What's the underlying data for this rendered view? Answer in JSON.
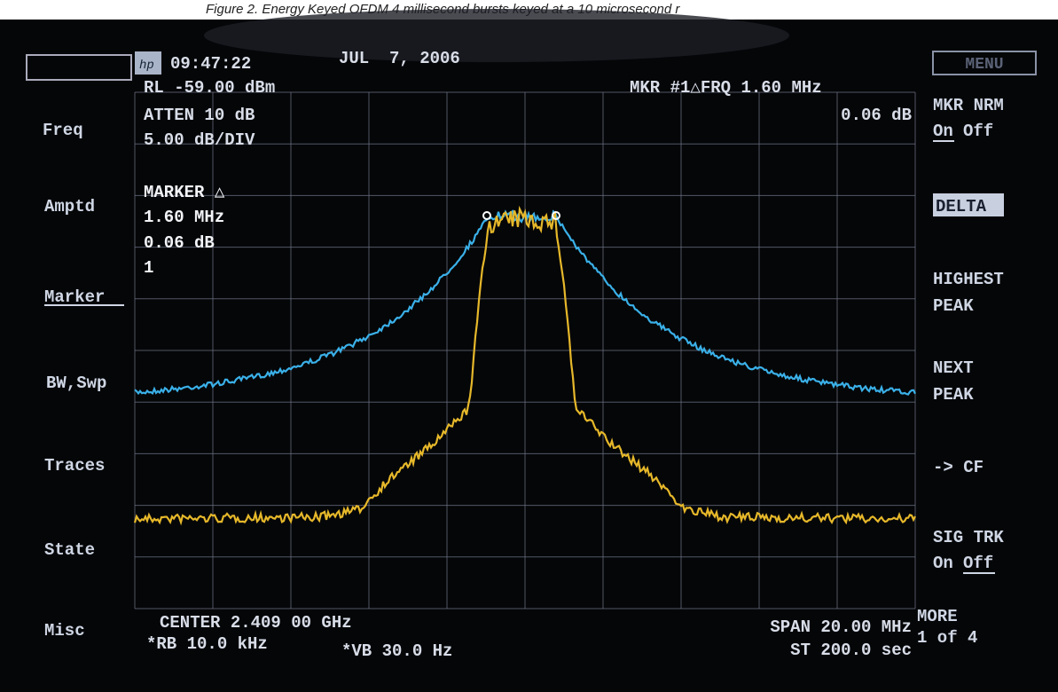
{
  "caption": "Figure 2. Energy Keyed OFDM 4 millisecond bursts keyed at a 10 microsecond r",
  "header": {
    "logo": "hp",
    "time": "09:47:22",
    "date": "JUL  7, 2006"
  },
  "settings": {
    "reference_level": "RL -59.00 dBm",
    "attenuation": "ATTEN 10 dB",
    "scale": "5.00 dB/DIV"
  },
  "marker_readout": {
    "line1": "MKR #1△FRQ 1.60 MHz",
    "line2": "0.06 dB"
  },
  "marker_box": {
    "title": "MARKER △",
    "frequency": "1.60 MHz",
    "level": "0.06 dB",
    "number": "1"
  },
  "left_keys": [
    "Freq",
    "Amptd",
    "Marker",
    "BW,Swp",
    "Traces",
    "State",
    "Misc"
  ],
  "right_keys": {
    "menu": "MENU",
    "mkr_nrm": "MKR NRM",
    "mkr_on": "On",
    "mkr_off": "Off",
    "delta": "DELTA",
    "highest": "HIGHEST",
    "highest_2": "PEAK",
    "next": "NEXT",
    "next_2": "PEAK",
    "cf": "-> CF",
    "sig_trk": "SIG TRK",
    "sig_on": "On",
    "sig_off": "Off",
    "more": "MORE",
    "more_2": "1 of 4"
  },
  "footer": {
    "center": "CENTER 2.409 00 GHz",
    "rbw": "*RB 10.0 kHz",
    "vbw": "*VB 30.0 Hz",
    "span": "SPAN 20.00 MHz",
    "sweep": "ST 200.0 sec"
  }
}
